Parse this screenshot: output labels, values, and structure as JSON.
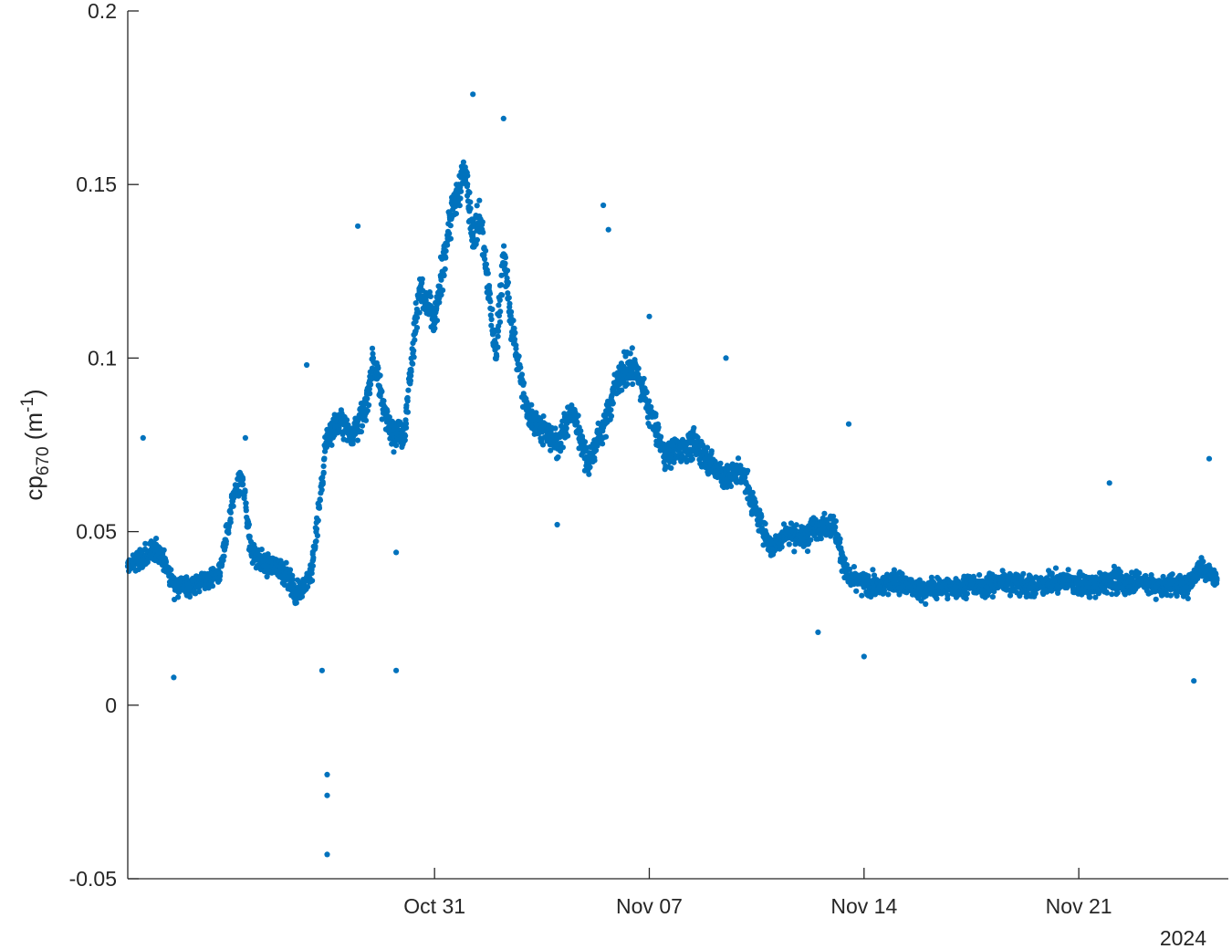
{
  "chart_data": {
    "type": "scatter",
    "title": "",
    "xlabel": "",
    "ylabel": {
      "base": "cp",
      "subscript": "670",
      "unit_open": " (m",
      "superscript": "-1",
      "unit_close": ")"
    },
    "x_year_label": "2024",
    "xlim": [
      "2024-10-21",
      "2024-11-25T21:00"
    ],
    "ylim": [
      -0.05,
      0.2
    ],
    "x_ticks": [
      {
        "date": "2024-10-31",
        "label": "Oct 31"
      },
      {
        "date": "2024-11-07",
        "label": "Nov 07"
      },
      {
        "date": "2024-11-14",
        "label": "Nov 14"
      },
      {
        "date": "2024-11-21",
        "label": "Nov 21"
      }
    ],
    "y_ticks": [
      {
        "value": -0.05,
        "label": "-0.05"
      },
      {
        "value": 0,
        "label": "0"
      },
      {
        "value": 0.05,
        "label": "0.05"
      },
      {
        "value": 0.1,
        "label": "0.1"
      },
      {
        "value": 0.15,
        "label": "0.15"
      },
      {
        "value": 0.2,
        "label": "0.2"
      }
    ],
    "grid": false,
    "legend": "none",
    "marker_color": "#0072BD",
    "axis_color": "#262626",
    "series": [
      {
        "x": [
          "2024-10-21",
          "2024-10-22",
          "2024-10-22T12:00",
          "2024-10-23",
          "2024-10-24",
          "2024-10-24T12:00",
          "2024-10-24T18:00",
          "2024-10-25",
          "2024-10-25T12:00",
          "2024-10-26",
          "2024-10-26T12:00",
          "2024-10-27",
          "2024-10-27T12:00",
          "2024-10-28",
          "2024-10-28T06:00",
          "2024-10-28T18:00",
          "2024-10-29",
          "2024-10-29T12:00",
          "2024-10-30",
          "2024-10-30T12:00",
          "2024-10-31",
          "2024-10-31T12:00",
          "2024-11-01",
          "2024-11-01T06:00",
          "2024-11-01T12:00",
          "2024-11-02",
          "2024-11-02T06:00",
          "2024-11-02T12:00",
          "2024-11-03",
          "2024-11-03T12:00",
          "2024-11-04",
          "2024-11-04T12:00",
          "2024-11-05",
          "2024-11-05T12:00",
          "2024-11-06",
          "2024-11-06T12:00",
          "2024-11-07",
          "2024-11-07T12:00",
          "2024-11-08",
          "2024-11-08T12:00",
          "2024-11-09",
          "2024-11-09T12:00",
          "2024-11-10",
          "2024-11-10T12:00",
          "2024-11-11",
          "2024-11-11T12:00",
          "2024-11-12",
          "2024-11-12T12:00",
          "2024-11-13",
          "2024-11-13T12:00",
          "2024-11-14",
          "2024-11-14T12:00",
          "2024-11-15",
          "2024-11-15T12:00",
          "2024-11-16",
          "2024-11-16T12:00",
          "2024-11-17",
          "2024-11-17T12:00",
          "2024-11-18",
          "2024-11-18T12:00",
          "2024-11-19",
          "2024-11-19T12:00",
          "2024-11-20",
          "2024-11-20T12:00",
          "2024-11-21",
          "2024-11-21T12:00",
          "2024-11-22",
          "2024-11-22T12:00",
          "2024-11-23",
          "2024-11-23T12:00",
          "2024-11-24",
          "2024-11-24T12:00",
          "2024-11-25",
          "2024-11-25T12:00"
        ],
        "y": [
          0.04,
          0.045,
          0.035,
          0.034,
          0.038,
          0.062,
          0.065,
          0.045,
          0.04,
          0.04,
          0.032,
          0.038,
          0.078,
          0.082,
          0.078,
          0.085,
          0.1,
          0.08,
          0.078,
          0.12,
          0.11,
          0.14,
          0.155,
          0.135,
          0.14,
          0.1,
          0.13,
          0.11,
          0.085,
          0.08,
          0.075,
          0.085,
          0.07,
          0.08,
          0.095,
          0.098,
          0.085,
          0.072,
          0.074,
          0.075,
          0.07,
          0.065,
          0.068,
          0.055,
          0.045,
          0.05,
          0.048,
          0.052,
          0.052,
          0.036,
          0.035,
          0.034,
          0.036,
          0.034,
          0.033,
          0.034,
          0.034,
          0.035,
          0.034,
          0.036,
          0.035,
          0.034,
          0.035,
          0.036,
          0.035,
          0.034,
          0.036,
          0.035,
          0.036,
          0.034,
          0.035,
          0.034,
          0.04,
          0.036
        ],
        "outliers": [
          [
            "2024-10-24T20:00",
            0.077
          ],
          [
            "2024-10-26T20:00",
            0.098
          ],
          [
            "2024-10-27T12:00",
            -0.043
          ],
          [
            "2024-10-27T12:00",
            -0.026
          ],
          [
            "2024-10-27T12:00",
            -0.02
          ],
          [
            "2024-10-27T08:00",
            0.01
          ],
          [
            "2024-10-29T18:00",
            0.01
          ],
          [
            "2024-10-29T18:00",
            0.044
          ],
          [
            "2024-10-28T12:00",
            0.138
          ],
          [
            "2024-11-01T06:00",
            0.176
          ],
          [
            "2024-11-02T06:00",
            0.169
          ],
          [
            "2024-11-05T12:00",
            0.144
          ],
          [
            "2024-11-05T16:00",
            0.137
          ],
          [
            "2024-11-07T00:00",
            0.112
          ],
          [
            "2024-11-09T12:00",
            0.1
          ],
          [
            "2024-11-12T12:00",
            0.021
          ],
          [
            "2024-11-13T12:00",
            0.081
          ],
          [
            "2024-11-14T00:00",
            0.014
          ],
          [
            "2024-11-25T06:00",
            0.071
          ],
          [
            "2024-11-24T18:00",
            0.007
          ],
          [
            "2024-11-22T00:00",
            0.064
          ],
          [
            "2024-10-22T12:00",
            0.008
          ],
          [
            "2024-10-21T12:00",
            0.077
          ],
          [
            "2024-11-04T00:00",
            0.052
          ]
        ]
      }
    ]
  }
}
